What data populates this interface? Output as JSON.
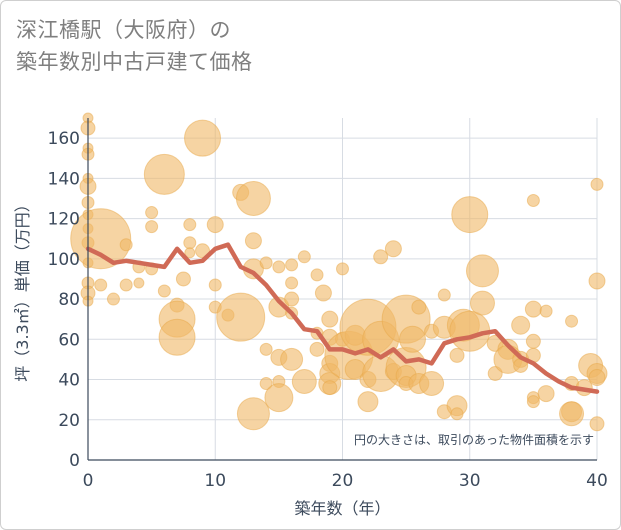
{
  "title_line1": "深江橋駅（大阪府）の",
  "title_line2": "築年数別中古戸建て価格",
  "chart_data": {
    "type": "scatter",
    "title": "深江橋駅（大阪府）の 築年数別中古戸建て価格",
    "xlabel": "築年数（年）",
    "ylabel": "坪（3.3㎡）単価（万円）",
    "xlim": [
      0,
      40
    ],
    "ylim": [
      0,
      170
    ],
    "xticks": [
      0,
      10,
      20,
      30,
      40
    ],
    "yticks": [
      0,
      20,
      40,
      60,
      80,
      100,
      120,
      140,
      160
    ],
    "grid": true,
    "note": "円の大きさは、取引のあった物件面積を示す",
    "bubble_color": "#f0b866",
    "line_color": "#d06a56",
    "scatter": [
      {
        "x": 0,
        "y": 170,
        "r": 5
      },
      {
        "x": 0,
        "y": 165,
        "r": 7
      },
      {
        "x": 0,
        "y": 155,
        "r": 5
      },
      {
        "x": 0,
        "y": 152,
        "r": 6
      },
      {
        "x": 0,
        "y": 140,
        "r": 5
      },
      {
        "x": 0,
        "y": 136,
        "r": 8
      },
      {
        "x": 0,
        "y": 128,
        "r": 6
      },
      {
        "x": 0,
        "y": 122,
        "r": 5
      },
      {
        "x": 0,
        "y": 115,
        "r": 5
      },
      {
        "x": 0,
        "y": 108,
        "r": 6
      },
      {
        "x": 0,
        "y": 98,
        "r": 5
      },
      {
        "x": 0,
        "y": 88,
        "r": 6
      },
      {
        "x": 0,
        "y": 83,
        "r": 7
      },
      {
        "x": 0,
        "y": 79,
        "r": 5
      },
      {
        "x": 1,
        "y": 110,
        "r": 30
      },
      {
        "x": 1,
        "y": 87,
        "r": 6
      },
      {
        "x": 2,
        "y": 80,
        "r": 6
      },
      {
        "x": 3,
        "y": 107,
        "r": 6
      },
      {
        "x": 3,
        "y": 87,
        "r": 6
      },
      {
        "x": 4,
        "y": 96,
        "r": 6
      },
      {
        "x": 4,
        "y": 88,
        "r": 5
      },
      {
        "x": 5,
        "y": 123,
        "r": 6
      },
      {
        "x": 5,
        "y": 116,
        "r": 6
      },
      {
        "x": 5,
        "y": 95,
        "r": 6
      },
      {
        "x": 6,
        "y": 142,
        "r": 20
      },
      {
        "x": 6,
        "y": 84,
        "r": 6
      },
      {
        "x": 7,
        "y": 77,
        "r": 7
      },
      {
        "x": 7,
        "y": 70,
        "r": 18
      },
      {
        "x": 7,
        "y": 61,
        "r": 18
      },
      {
        "x": 7.5,
        "y": 90,
        "r": 7
      },
      {
        "x": 8,
        "y": 117,
        "r": 6
      },
      {
        "x": 8,
        "y": 108,
        "r": 6
      },
      {
        "x": 8,
        "y": 103,
        "r": 5
      },
      {
        "x": 9,
        "y": 160,
        "r": 18
      },
      {
        "x": 9,
        "y": 104,
        "r": 7
      },
      {
        "x": 10,
        "y": 117,
        "r": 8
      },
      {
        "x": 10,
        "y": 87,
        "r": 6
      },
      {
        "x": 10,
        "y": 76,
        "r": 6
      },
      {
        "x": 11,
        "y": 72,
        "r": 6
      },
      {
        "x": 12,
        "y": 133,
        "r": 8
      },
      {
        "x": 12,
        "y": 71,
        "r": 24
      },
      {
        "x": 13,
        "y": 130,
        "r": 17
      },
      {
        "x": 13,
        "y": 109,
        "r": 8
      },
      {
        "x": 13,
        "y": 95,
        "r": 10
      },
      {
        "x": 13,
        "y": 23,
        "r": 16
      },
      {
        "x": 14,
        "y": 98,
        "r": 6
      },
      {
        "x": 14,
        "y": 55,
        "r": 6
      },
      {
        "x": 14,
        "y": 38,
        "r": 6
      },
      {
        "x": 15,
        "y": 96,
        "r": 6
      },
      {
        "x": 15,
        "y": 76,
        "r": 10
      },
      {
        "x": 15,
        "y": 51,
        "r": 8
      },
      {
        "x": 15,
        "y": 39,
        "r": 6
      },
      {
        "x": 15,
        "y": 31,
        "r": 14
      },
      {
        "x": 16,
        "y": 97,
        "r": 6
      },
      {
        "x": 16,
        "y": 88,
        "r": 6
      },
      {
        "x": 16,
        "y": 80,
        "r": 7
      },
      {
        "x": 16,
        "y": 73,
        "r": 6
      },
      {
        "x": 16,
        "y": 50,
        "r": 11
      },
      {
        "x": 17,
        "y": 101,
        "r": 6
      },
      {
        "x": 17,
        "y": 39,
        "r": 12
      },
      {
        "x": 18,
        "y": 92,
        "r": 6
      },
      {
        "x": 18,
        "y": 63,
        "r": 6
      },
      {
        "x": 18,
        "y": 55,
        "r": 7
      },
      {
        "x": 18.5,
        "y": 83,
        "r": 8
      },
      {
        "x": 19,
        "y": 70,
        "r": 8
      },
      {
        "x": 19,
        "y": 61,
        "r": 8
      },
      {
        "x": 19,
        "y": 48,
        "r": 8
      },
      {
        "x": 19,
        "y": 43,
        "r": 10
      },
      {
        "x": 19,
        "y": 38,
        "r": 11
      },
      {
        "x": 19,
        "y": 36,
        "r": 7
      },
      {
        "x": 20,
        "y": 95,
        "r": 6
      },
      {
        "x": 20,
        "y": 60,
        "r": 7
      },
      {
        "x": 20.5,
        "y": 52,
        "r": 24
      },
      {
        "x": 21,
        "y": 62,
        "r": 10
      },
      {
        "x": 21,
        "y": 45,
        "r": 10
      },
      {
        "x": 22,
        "y": 66,
        "r": 28
      },
      {
        "x": 22,
        "y": 40,
        "r": 8
      },
      {
        "x": 22,
        "y": 29,
        "r": 10
      },
      {
        "x": 23,
        "y": 101,
        "r": 7
      },
      {
        "x": 23,
        "y": 60,
        "r": 18
      },
      {
        "x": 23,
        "y": 43,
        "r": 18
      },
      {
        "x": 24,
        "y": 105,
        "r": 8
      },
      {
        "x": 24,
        "y": 44,
        "r": 8
      },
      {
        "x": 25,
        "y": 70,
        "r": 24
      },
      {
        "x": 25,
        "y": 46,
        "r": 20
      },
      {
        "x": 25,
        "y": 42,
        "r": 10
      },
      {
        "x": 25,
        "y": 38,
        "r": 7
      },
      {
        "x": 25.5,
        "y": 60,
        "r": 13
      },
      {
        "x": 26,
        "y": 76,
        "r": 7
      },
      {
        "x": 26,
        "y": 38,
        "r": 10
      },
      {
        "x": 27,
        "y": 38,
        "r": 12
      },
      {
        "x": 27,
        "y": 64,
        "r": 7
      },
      {
        "x": 28,
        "y": 82,
        "r": 6
      },
      {
        "x": 28,
        "y": 66,
        "r": 11
      },
      {
        "x": 28,
        "y": 24,
        "r": 7
      },
      {
        "x": 29,
        "y": 52,
        "r": 7
      },
      {
        "x": 29,
        "y": 27,
        "r": 10
      },
      {
        "x": 29,
        "y": 23,
        "r": 6
      },
      {
        "x": 29.5,
        "y": 67,
        "r": 16
      },
      {
        "x": 30,
        "y": 122,
        "r": 18
      },
      {
        "x": 30,
        "y": 64,
        "r": 20
      },
      {
        "x": 31,
        "y": 94,
        "r": 16
      },
      {
        "x": 31,
        "y": 78,
        "r": 12
      },
      {
        "x": 32,
        "y": 58,
        "r": 8
      },
      {
        "x": 32,
        "y": 43,
        "r": 7
      },
      {
        "x": 33,
        "y": 55,
        "r": 10
      },
      {
        "x": 33,
        "y": 50,
        "r": 14
      },
      {
        "x": 34,
        "y": 67,
        "r": 9
      },
      {
        "x": 34,
        "y": 50,
        "r": 8
      },
      {
        "x": 34,
        "y": 47,
        "r": 7
      },
      {
        "x": 35,
        "y": 129,
        "r": 6
      },
      {
        "x": 35,
        "y": 75,
        "r": 8
      },
      {
        "x": 35,
        "y": 59,
        "r": 7
      },
      {
        "x": 35,
        "y": 52,
        "r": 7
      },
      {
        "x": 35,
        "y": 31,
        "r": 6
      },
      {
        "x": 35,
        "y": 29,
        "r": 6
      },
      {
        "x": 36,
        "y": 74,
        "r": 6
      },
      {
        "x": 36,
        "y": 33,
        "r": 8
      },
      {
        "x": 38,
        "y": 69,
        "r": 6
      },
      {
        "x": 38,
        "y": 38,
        "r": 7
      },
      {
        "x": 38,
        "y": 24,
        "r": 10
      },
      {
        "x": 38,
        "y": 23,
        "r": 12
      },
      {
        "x": 39,
        "y": 36,
        "r": 8
      },
      {
        "x": 39.5,
        "y": 47,
        "r": 12
      },
      {
        "x": 40,
        "y": 137,
        "r": 6
      },
      {
        "x": 40,
        "y": 89,
        "r": 8
      },
      {
        "x": 40,
        "y": 43,
        "r": 10
      },
      {
        "x": 40,
        "y": 41,
        "r": 8
      },
      {
        "x": 40,
        "y": 18,
        "r": 7
      }
    ],
    "trend": [
      {
        "x": 0,
        "y": 105
      },
      {
        "x": 1,
        "y": 102
      },
      {
        "x": 2,
        "y": 98
      },
      {
        "x": 3,
        "y": 99
      },
      {
        "x": 4,
        "y": 98
      },
      {
        "x": 5,
        "y": 97
      },
      {
        "x": 6,
        "y": 96
      },
      {
        "x": 7,
        "y": 105
      },
      {
        "x": 8,
        "y": 98
      },
      {
        "x": 9,
        "y": 99
      },
      {
        "x": 10,
        "y": 105
      },
      {
        "x": 11,
        "y": 107
      },
      {
        "x": 12,
        "y": 96
      },
      {
        "x": 13,
        "y": 93
      },
      {
        "x": 14,
        "y": 87
      },
      {
        "x": 15,
        "y": 79
      },
      {
        "x": 16,
        "y": 73
      },
      {
        "x": 17,
        "y": 65
      },
      {
        "x": 18,
        "y": 64
      },
      {
        "x": 19,
        "y": 55
      },
      {
        "x": 20,
        "y": 55
      },
      {
        "x": 21,
        "y": 53
      },
      {
        "x": 22,
        "y": 55
      },
      {
        "x": 23,
        "y": 51
      },
      {
        "x": 24,
        "y": 55
      },
      {
        "x": 25,
        "y": 49
      },
      {
        "x": 26,
        "y": 50
      },
      {
        "x": 27,
        "y": 48
      },
      {
        "x": 28,
        "y": 58
      },
      {
        "x": 29,
        "y": 60
      },
      {
        "x": 30,
        "y": 61
      },
      {
        "x": 31,
        "y": 63
      },
      {
        "x": 32,
        "y": 64
      },
      {
        "x": 33,
        "y": 57
      },
      {
        "x": 34,
        "y": 51
      },
      {
        "x": 35,
        "y": 48
      },
      {
        "x": 36,
        "y": 43
      },
      {
        "x": 37,
        "y": 39
      },
      {
        "x": 38,
        "y": 36
      },
      {
        "x": 39,
        "y": 35
      },
      {
        "x": 40,
        "y": 34
      }
    ]
  }
}
